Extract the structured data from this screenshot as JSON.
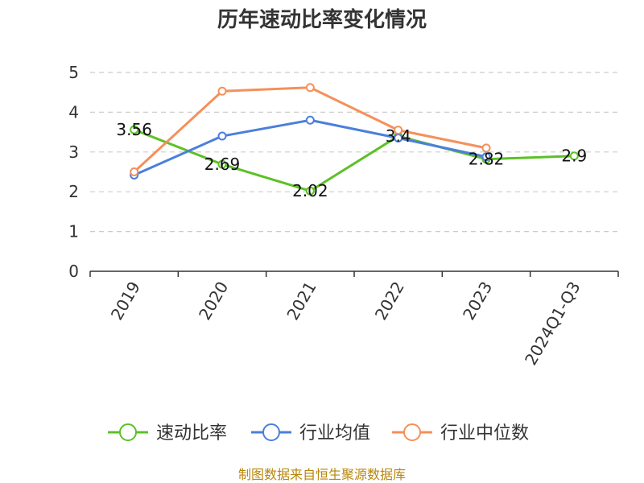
{
  "chart_data": {
    "type": "line",
    "title": "历年速动比率变化情况",
    "categories": [
      "2019",
      "2020",
      "2021",
      "2022",
      "2023",
      "2024Q1-Q3"
    ],
    "ylim": [
      0,
      5
    ],
    "yticks": [
      "0",
      "1",
      "2",
      "3",
      "4",
      "5"
    ],
    "grid": true,
    "legend_position": "bottom",
    "series": [
      {
        "name": "速动比率",
        "color": "#5cc126",
        "values": [
          3.56,
          2.69,
          2.02,
          3.4,
          2.82,
          2.9
        ],
        "labels": [
          "3.56",
          "2.69",
          "2.02",
          "3.4",
          "2.82",
          "2.9"
        ]
      },
      {
        "name": "行业均值",
        "color": "#4b7fdc",
        "values": [
          2.42,
          3.4,
          3.8,
          3.35,
          2.88,
          null
        ]
      },
      {
        "name": "行业中位数",
        "color": "#f5905a",
        "values": [
          2.5,
          4.53,
          4.62,
          3.55,
          3.1,
          null
        ]
      }
    ]
  },
  "source_text": "制图数据来自恒生聚源数据库"
}
